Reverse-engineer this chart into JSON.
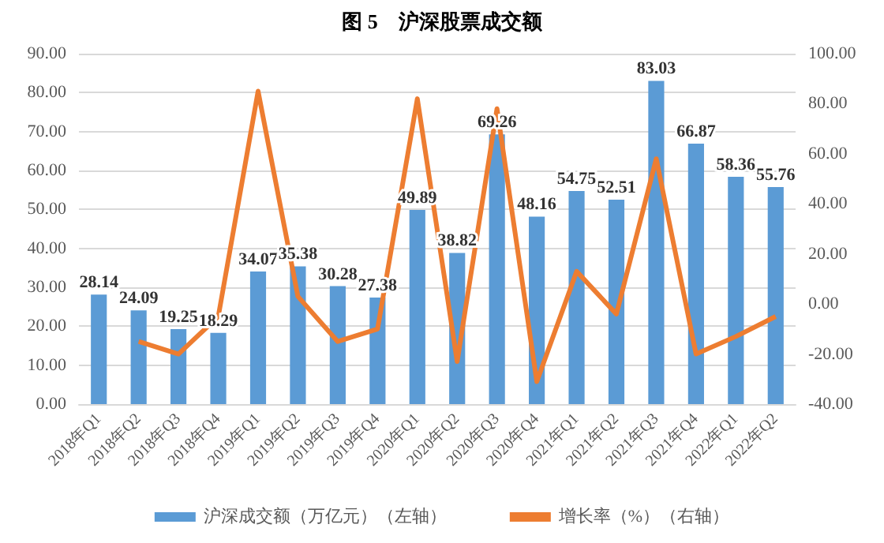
{
  "chart_data": {
    "type": "bar",
    "title": "图 5　沪深股票成交额",
    "categories": [
      "2018年Q1",
      "2018年Q2",
      "2018年Q3",
      "2018年Q4",
      "2019年Q1",
      "2019年Q2",
      "2019年Q3",
      "2019年Q4",
      "2020年Q1",
      "2020年Q2",
      "2020年Q3",
      "2020年Q4",
      "2021年Q1",
      "2021年Q2",
      "2021年Q3",
      "2021年Q4",
      "2022年Q1",
      "2022年Q2"
    ],
    "series": [
      {
        "name": "沪深成交额（万亿元）（左轴）",
        "color": "#5b9bd5",
        "data_labels": true,
        "values": [
          28.14,
          24.09,
          19.25,
          18.29,
          34.07,
          35.38,
          30.28,
          27.38,
          49.89,
          38.82,
          69.26,
          48.16,
          54.75,
          52.51,
          83.03,
          66.87,
          58.36,
          55.76
        ]
      },
      {
        "name": "增长率（%）（右轴）",
        "type": "line",
        "axis": "y2",
        "color": "#ed7d31",
        "marker": "none",
        "values": [
          null,
          -15,
          -20,
          -5,
          85,
          3,
          -15,
          -10,
          82,
          -23,
          78,
          -31,
          13,
          -4,
          58,
          -20,
          -13,
          -5
        ]
      }
    ],
    "ylim": [
      0,
      90
    ],
    "yticks": [
      {
        "value": 0,
        "label": "0.00"
      },
      {
        "value": 10,
        "label": "10.00"
      },
      {
        "value": 20,
        "label": "20.00"
      },
      {
        "value": 30,
        "label": "30.00"
      },
      {
        "value": 40,
        "label": "40.00"
      },
      {
        "value": 50,
        "label": "50.00"
      },
      {
        "value": 60,
        "label": "60.00"
      },
      {
        "value": 70,
        "label": "70.00"
      },
      {
        "value": 80,
        "label": "80.00"
      },
      {
        "value": 90,
        "label": "90.00"
      }
    ],
    "y2lim": [
      -40,
      100
    ],
    "y2ticks": [
      {
        "value": -40,
        "label": "-40.00"
      },
      {
        "value": -20,
        "label": "-20.00"
      },
      {
        "value": 0,
        "label": "0.00"
      },
      {
        "value": 20,
        "label": "20.00"
      },
      {
        "value": 40,
        "label": "40.00"
      },
      {
        "value": 60,
        "label": "60.00"
      },
      {
        "value": 80,
        "label": "80.00"
      },
      {
        "value": 100,
        "label": "100.00"
      }
    ],
    "grid": "y",
    "legend": "bottom"
  }
}
